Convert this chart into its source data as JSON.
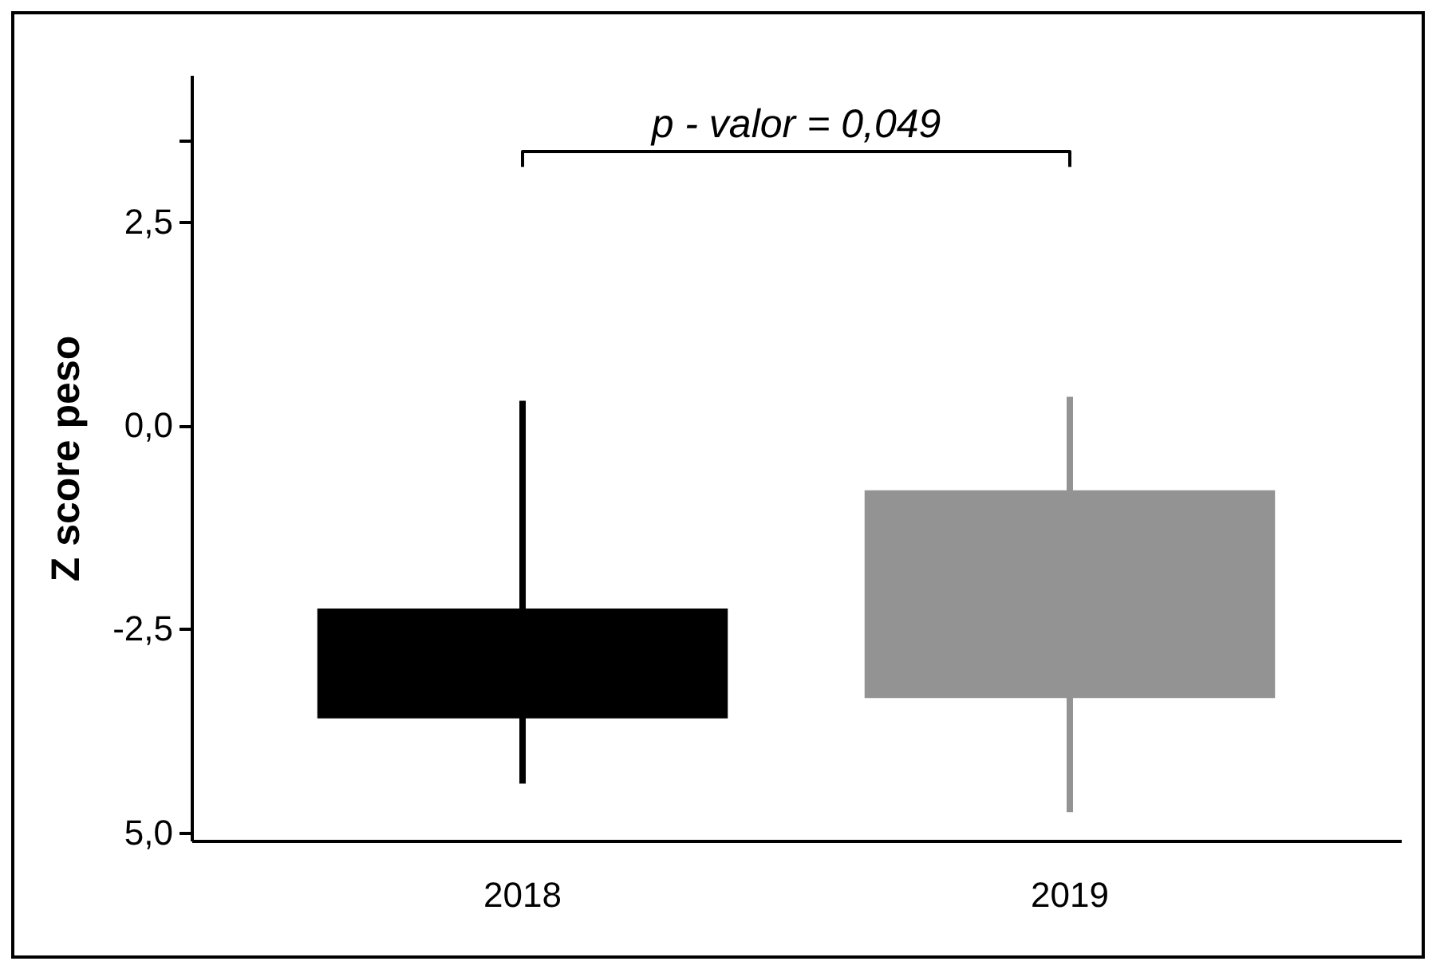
{
  "chart_data": {
    "type": "box",
    "categories": [
      "2018",
      "2019"
    ],
    "boxes": [
      {
        "low": -4.4,
        "q1": -3.6,
        "q3": -2.25,
        "high": 0.3
      },
      {
        "low": -4.75,
        "q1": -3.35,
        "q3": -0.8,
        "high": 0.35
      }
    ],
    "colors": [
      "#000000",
      "#939393"
    ],
    "ylabel": "Z score peso",
    "ylim": [
      -5.1,
      4.3
    ],
    "yticks": [
      {
        "value": -5,
        "label": "5,0"
      },
      {
        "value": -2.5,
        "label": "-2,5"
      },
      {
        "value": 0,
        "label": "0,0"
      },
      {
        "value": 2.5,
        "label": "2,5"
      },
      {
        "value": 3.5,
        "label": null
      }
    ],
    "annotations": [
      "p - valor = 0,049"
    ]
  }
}
